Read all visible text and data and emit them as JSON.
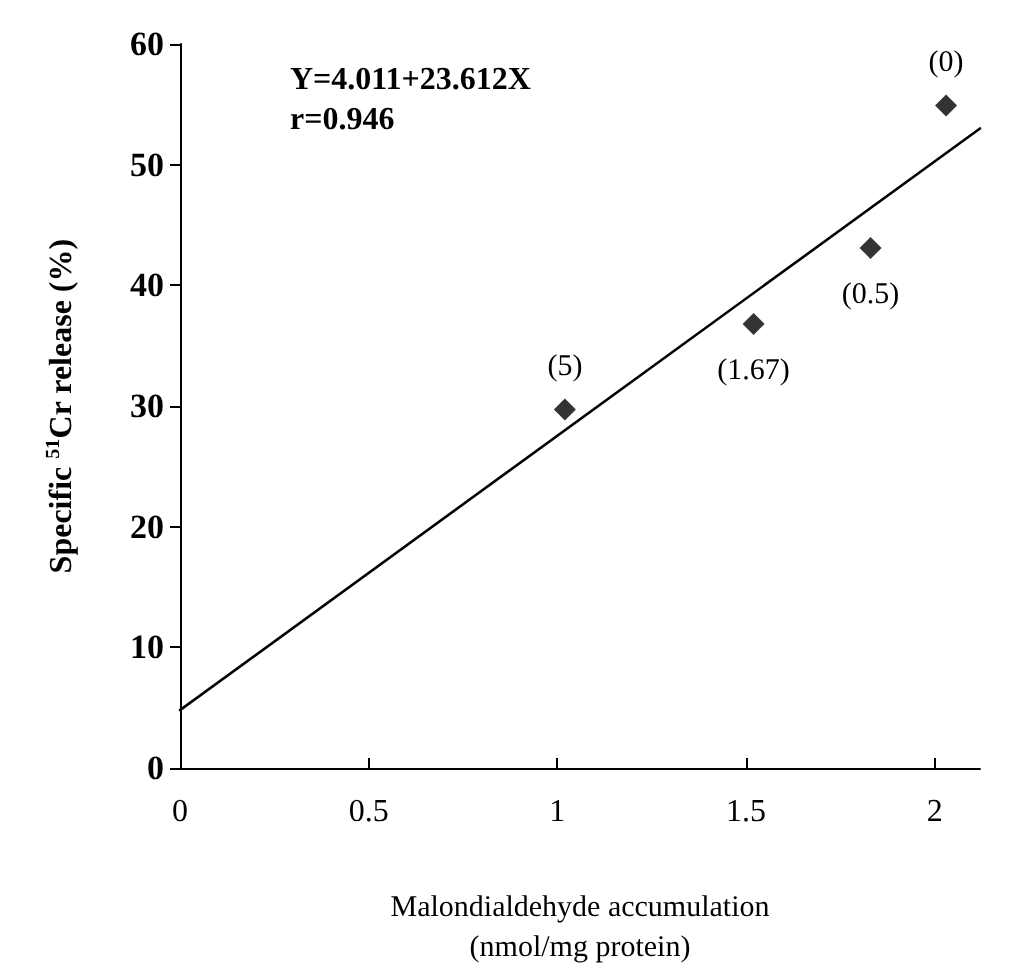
{
  "chart_data": {
    "type": "scatter",
    "xlabel": "Malondialdehyde accumulation\n(nmol/mg protein)",
    "ylabel": "Specific $^{51}$Cr release (%)",
    "series": [
      {
        "color": "#000000",
        "marker": "diamond",
        "x": [
          1.02,
          1.52,
          1.83,
          2.03
        ],
        "values": [
          29.7,
          36.8,
          43.1,
          54.9
        ]
      },
      {
        "type": "line",
        "color": "#000000",
        "marker": "none",
        "line_style": "solid",
        "x": [
          0,
          2.12
        ],
        "values": [
          4.8,
          53.0
        ]
      }
    ],
    "annotations": [
      "Y=4.011+23.612X",
      "r=0.946",
      {
        "text": "(5)",
        "x": 1.02,
        "y": 29.7
      },
      {
        "text": "(1.67)",
        "x": 1.52,
        "y": 36.8
      },
      {
        "text": "(0.5)",
        "x": 1.83,
        "y": 43.1
      },
      {
        "text": "(0)",
        "x": 2.03,
        "y": 54.9
      }
    ],
    "xlim": [
      0,
      2.12
    ],
    "xticks": [
      0,
      0.5,
      1,
      1.5,
      2
    ],
    "ylim": [
      0,
      60
    ],
    "yticks": [
      0,
      10,
      20,
      30,
      40,
      50,
      60
    ],
    "grid": false
  }
}
